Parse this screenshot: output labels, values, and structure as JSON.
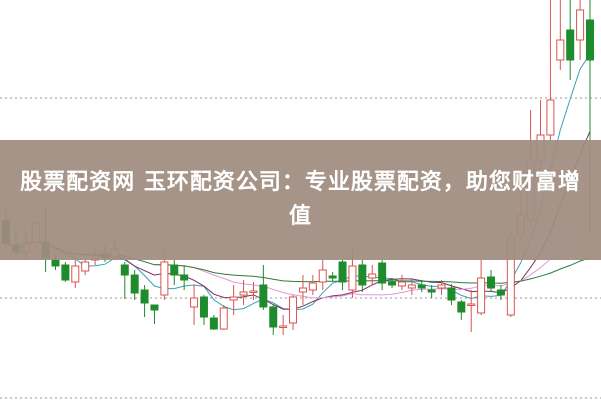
{
  "banner": {
    "title": "股票配资网 玉环配资公司：专业股票配资，助您财富增值"
  },
  "chart_data": {
    "type": "candlestick",
    "title": "",
    "ylim": [
      0,
      400
    ],
    "grid": "dotted horizontal",
    "gridlines": [
      302,
      102,
      2
    ],
    "colors": {
      "up": "#d9534f",
      "down": "#1e8c2c",
      "ma5": "#3aa0b5",
      "ma10": "#7a2f5a",
      "ma20": "#e29ad8",
      "ma60": "#2f7a3a",
      "grid": "#999999"
    },
    "moving_averages": [
      5,
      10,
      20,
      60
    ],
    "candles": [
      [
        180,
        157,
        190,
        150
      ],
      [
        155,
        148,
        170,
        145
      ],
      [
        148,
        157,
        170,
        140
      ],
      [
        158,
        177,
        180,
        150
      ],
      [
        158,
        142,
        192,
        128
      ],
      [
        140,
        134,
        145,
        130
      ],
      [
        135,
        120,
        138,
        118
      ],
      [
        118,
        134,
        140,
        112
      ],
      [
        129,
        138,
        142,
        125
      ],
      [
        140,
        145,
        152,
        135
      ],
      [
        146,
        142,
        155,
        138
      ],
      [
        143,
        151,
        160,
        140
      ],
      [
        135,
        125,
        138,
        101
      ],
      [
        125,
        107,
        130,
        100
      ],
      [
        110,
        97,
        115,
        83
      ],
      [
        95,
        90,
        95,
        76
      ],
      [
        105,
        138,
        150,
        100
      ],
      [
        135,
        125,
        140,
        115
      ],
      [
        125,
        120,
        135,
        110
      ],
      [
        93,
        102,
        115,
        75
      ],
      [
        103,
        83,
        105,
        75
      ],
      [
        82,
        71,
        85,
        70
      ],
      [
        71,
        92,
        95,
        70
      ],
      [
        100,
        103,
        115,
        85
      ],
      [
        105,
        108,
        120,
        95
      ],
      [
        108,
        109,
        118,
        100
      ],
      [
        115,
        93,
        135,
        90
      ],
      [
        93,
        73,
        95,
        65
      ],
      [
        73,
        74,
        85,
        65
      ],
      [
        77,
        103,
        105,
        70
      ],
      [
        108,
        112,
        125,
        95
      ],
      [
        110,
        117,
        125,
        105
      ],
      [
        118,
        130,
        140,
        110
      ],
      [
        124,
        122,
        128,
        118
      ],
      [
        138,
        118,
        140,
        110
      ],
      [
        110,
        134,
        150,
        102
      ],
      [
        135,
        115,
        140,
        108
      ],
      [
        122,
        126,
        135,
        115
      ],
      [
        137,
        117,
        140,
        110
      ],
      [
        118,
        115,
        122,
        112
      ],
      [
        114,
        118,
        125,
        110
      ],
      [
        112,
        115,
        122,
        105
      ],
      [
        115,
        112,
        120,
        108
      ],
      [
        110,
        108,
        115,
        102
      ],
      [
        112,
        115,
        120,
        105
      ],
      [
        112,
        100,
        116,
        95
      ],
      [
        98,
        88,
        100,
        80
      ],
      [
        95,
        96,
        110,
        68
      ],
      [
        87,
        122,
        140,
        85
      ],
      [
        123,
        112,
        130,
        108
      ],
      [
        110,
        105,
        115,
        100
      ],
      [
        85,
        162,
        170,
        83
      ],
      [
        165,
        185,
        230,
        160
      ],
      [
        180,
        240,
        290,
        175
      ],
      [
        240,
        265,
        300,
        230
      ],
      [
        265,
        300,
        420,
        260
      ],
      [
        340,
        360,
        420,
        330
      ],
      [
        370,
        340,
        420,
        320
      ],
      [
        360,
        390,
        420,
        340
      ],
      [
        380,
        340,
        420,
        165
      ]
    ]
  }
}
